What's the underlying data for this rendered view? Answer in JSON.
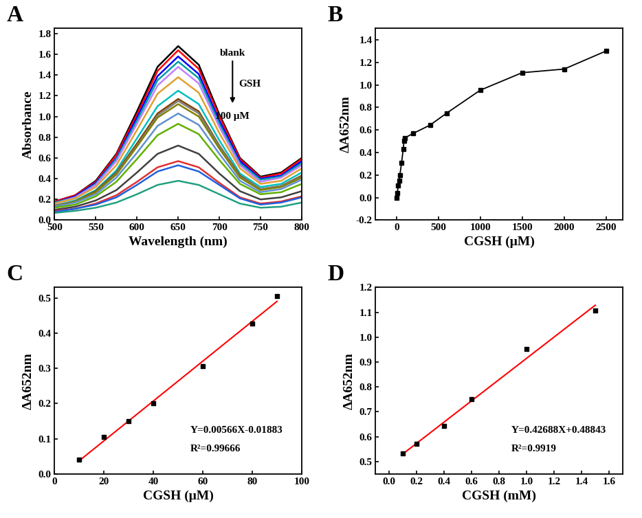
{
  "chart_data": [
    {
      "type": "line",
      "annotations": [
        "A",
        "blank",
        "GSH",
        "100 μM"
      ],
      "x_label": "Wavelength (nm)",
      "y_label": "Absorbance",
      "x": [
        500,
        525,
        550,
        575,
        600,
        625,
        650,
        675,
        700,
        725,
        750,
        775,
        800
      ],
      "series": [
        {
          "color": "#000000",
          "values": [
            0.18,
            0.24,
            0.38,
            0.64,
            1.05,
            1.48,
            1.68,
            1.5,
            1.02,
            0.6,
            0.42,
            0.46,
            0.6
          ]
        },
        {
          "color": "#ff0000",
          "values": [
            0.18,
            0.24,
            0.37,
            0.63,
            1.02,
            1.44,
            1.64,
            1.46,
            1.0,
            0.59,
            0.41,
            0.45,
            0.59
          ]
        },
        {
          "color": "#0000ff",
          "values": [
            0.17,
            0.23,
            0.36,
            0.6,
            0.99,
            1.39,
            1.58,
            1.41,
            0.96,
            0.57,
            0.4,
            0.43,
            0.57
          ]
        },
        {
          "color": "#00a0a0",
          "values": [
            0.17,
            0.22,
            0.35,
            0.59,
            0.96,
            1.35,
            1.53,
            1.37,
            0.93,
            0.55,
            0.39,
            0.42,
            0.55
          ]
        },
        {
          "color": "#c080ff",
          "values": [
            0.16,
            0.22,
            0.34,
            0.57,
            0.93,
            1.3,
            1.48,
            1.32,
            0.9,
            0.53,
            0.37,
            0.41,
            0.53
          ]
        },
        {
          "color": "#e0a030",
          "values": [
            0.16,
            0.21,
            0.32,
            0.53,
            0.87,
            1.22,
            1.38,
            1.23,
            0.84,
            0.5,
            0.35,
            0.38,
            0.5
          ]
        },
        {
          "color": "#00c0c0",
          "values": [
            0.14,
            0.19,
            0.29,
            0.48,
            0.79,
            1.1,
            1.25,
            1.12,
            0.77,
            0.45,
            0.32,
            0.35,
            0.46
          ]
        },
        {
          "color": "#804000",
          "values": [
            0.14,
            0.18,
            0.28,
            0.46,
            0.74,
            1.03,
            1.17,
            1.05,
            0.72,
            0.43,
            0.3,
            0.33,
            0.43
          ]
        },
        {
          "color": "#808080",
          "values": [
            0.14,
            0.18,
            0.27,
            0.45,
            0.72,
            1.01,
            1.15,
            1.03,
            0.71,
            0.42,
            0.3,
            0.33,
            0.42
          ]
        },
        {
          "color": "#808000",
          "values": [
            0.13,
            0.18,
            0.27,
            0.44,
            0.71,
            0.99,
            1.12,
            1.0,
            0.69,
            0.41,
            0.29,
            0.32,
            0.41
          ]
        },
        {
          "color": "#6090d0",
          "values": [
            0.13,
            0.17,
            0.25,
            0.41,
            0.65,
            0.91,
            1.03,
            0.92,
            0.64,
            0.38,
            0.27,
            0.3,
            0.39
          ]
        },
        {
          "color": "#60b000",
          "values": [
            0.12,
            0.15,
            0.23,
            0.37,
            0.59,
            0.82,
            0.93,
            0.83,
            0.58,
            0.35,
            0.25,
            0.27,
            0.35
          ]
        },
        {
          "color": "#404040",
          "values": [
            0.1,
            0.13,
            0.19,
            0.29,
            0.46,
            0.64,
            0.72,
            0.64,
            0.45,
            0.28,
            0.2,
            0.22,
            0.28
          ]
        },
        {
          "color": "#e03030",
          "values": [
            0.09,
            0.11,
            0.16,
            0.24,
            0.37,
            0.51,
            0.57,
            0.51,
            0.36,
            0.22,
            0.16,
            0.18,
            0.23
          ]
        },
        {
          "color": "#2060e0",
          "values": [
            0.08,
            0.11,
            0.15,
            0.22,
            0.34,
            0.47,
            0.53,
            0.47,
            0.34,
            0.21,
            0.15,
            0.17,
            0.22
          ]
        },
        {
          "color": "#20a080",
          "values": [
            0.07,
            0.09,
            0.12,
            0.17,
            0.25,
            0.34,
            0.38,
            0.34,
            0.25,
            0.16,
            0.12,
            0.13,
            0.17
          ]
        }
      ],
      "xlim": [
        500,
        800
      ],
      "xticks": [
        500,
        550,
        600,
        650,
        700,
        750,
        800
      ],
      "ylim": [
        0,
        1.85
      ],
      "yticks": [
        {
          "value": 0,
          "label": "0.0"
        },
        0.2,
        0.4,
        0.6,
        0.8,
        {
          "value": 1,
          "label": "1.0"
        },
        1.2,
        1.4,
        1.6,
        1.8
      ]
    },
    {
      "type": "line",
      "annotations": [
        "B"
      ],
      "x_label": "CGSH (μM)",
      "y_label": "ΔA652nm",
      "x": [
        0,
        10,
        20,
        30,
        40,
        60,
        80,
        90,
        100,
        200,
        400,
        600,
        1000,
        1500,
        2000,
        2500
      ],
      "values": [
        0,
        0.04,
        0.105,
        0.15,
        0.2,
        0.307,
        0.428,
        0.505,
        0.53,
        0.57,
        0.643,
        0.75,
        0.953,
        1.108,
        1.14,
        1.3
      ],
      "color": "#000000",
      "marker": "square",
      "line_style": "solid",
      "xlim": [
        -250,
        2700
      ],
      "xticks": [
        0,
        500,
        1000,
        1500,
        2000,
        2500
      ],
      "ylim": [
        -0.2,
        1.5
      ],
      "yticks": [
        -0.2,
        {
          "value": 0,
          "label": "0.0"
        },
        0.2,
        0.4,
        0.6,
        0.8,
        {
          "value": 1,
          "label": "1.0"
        },
        1.2,
        1.4
      ]
    },
    {
      "type": "scatter",
      "annotations": [
        "C",
        "Y=0.00566X-0.01883",
        "R²=0.99666"
      ],
      "x_label": "CGSH (μM)",
      "y_label": "ΔA652nm",
      "x": [
        10,
        20,
        30,
        40,
        60,
        80,
        90
      ],
      "values": [
        0.04,
        0.105,
        0.15,
        0.2,
        0.307,
        0.428,
        0.505
      ],
      "color": "#000000",
      "marker": "square",
      "fit": {
        "slope": 0.00566,
        "intercept": -0.01883,
        "color": "#ff0000"
      },
      "xlim": [
        0,
        100
      ],
      "xticks": [
        0,
        20,
        40,
        60,
        80,
        100
      ],
      "ylim": [
        0,
        0.53
      ],
      "yticks": [
        {
          "value": 0,
          "label": "0.0"
        },
        0.1,
        0.2,
        0.3,
        0.4,
        0.5
      ]
    },
    {
      "type": "scatter",
      "annotations": [
        "D",
        "Y=0.42688X+0.48843",
        "R²=0.9919"
      ],
      "x_label": "CGSH (mM)",
      "y_label": "ΔA652nm",
      "x": [
        0.1,
        0.2,
        0.4,
        0.6,
        1.0,
        1.5
      ],
      "values": [
        0.533,
        0.57,
        0.643,
        0.75,
        0.953,
        1.108
      ],
      "color": "#000000",
      "marker": "square",
      "fit": {
        "slope": 0.42688,
        "intercept": 0.48843,
        "color": "#ff0000"
      },
      "xlim": [
        -0.1,
        1.7
      ],
      "xticks": [
        {
          "value": 0,
          "label": "0.0"
        },
        0.2,
        0.4,
        0.6,
        0.8,
        {
          "value": 1,
          "label": "1.0"
        },
        1.2,
        1.4,
        1.6
      ],
      "ylim": [
        0.45,
        1.2
      ],
      "yticks": [
        0.5,
        0.6,
        0.7,
        0.8,
        0.9,
        {
          "value": 1,
          "label": "1.0"
        },
        1.1,
        1.2
      ]
    }
  ]
}
